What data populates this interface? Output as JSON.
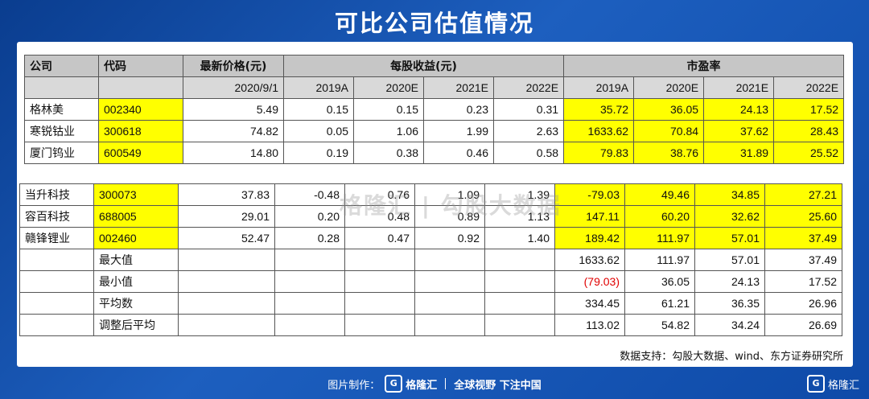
{
  "title": "可比公司估值情况",
  "header": {
    "company": "公司",
    "code": "代码",
    "latest_price": "最新价格(元)",
    "eps": "每股收益(元)",
    "pe": "市盈率",
    "date": "2020/9/1",
    "eps_years": [
      "2019A",
      "2020E",
      "2021E",
      "2022E"
    ],
    "pe_years": [
      "2019A",
      "2020E",
      "2021E",
      "2022E"
    ]
  },
  "group1": [
    {
      "name": "格林美",
      "code": "002340",
      "price": "5.49",
      "eps": [
        "0.15",
        "0.15",
        "0.23",
        "0.31"
      ],
      "pe": [
        "35.72",
        "36.05",
        "24.13",
        "17.52"
      ]
    },
    {
      "name": "寒锐钴业",
      "code": "300618",
      "price": "74.82",
      "eps": [
        "0.05",
        "1.06",
        "1.99",
        "2.63"
      ],
      "pe": [
        "1633.62",
        "70.84",
        "37.62",
        "28.43"
      ]
    },
    {
      "name": "厦门钨业",
      "code": "600549",
      "price": "14.80",
      "eps": [
        "0.19",
        "0.38",
        "0.46",
        "0.58"
      ],
      "pe": [
        "79.83",
        "38.76",
        "31.89",
        "25.52"
      ]
    }
  ],
  "group2": [
    {
      "name": "当升科技",
      "code": "300073",
      "price": "37.83",
      "eps": [
        "-0.48",
        "0.76",
        "1.09",
        "1.39"
      ],
      "pe": [
        "-79.03",
        "49.46",
        "34.85",
        "27.21"
      ]
    },
    {
      "name": "容百科技",
      "code": "688005",
      "price": "29.01",
      "eps": [
        "0.20",
        "0.48",
        "0.89",
        "1.13"
      ],
      "pe": [
        "147.11",
        "60.20",
        "32.62",
        "25.60"
      ]
    },
    {
      "name": "赣锋锂业",
      "code": "002460",
      "price": "52.47",
      "eps": [
        "0.28",
        "0.47",
        "0.92",
        "1.40"
      ],
      "pe": [
        "189.42",
        "111.97",
        "57.01",
        "37.49"
      ]
    }
  ],
  "stats": [
    {
      "label": "最大值",
      "pe": [
        "1633.62",
        "111.97",
        "57.01",
        "37.49"
      ]
    },
    {
      "label": "最小值",
      "pe": [
        "(79.03)",
        "36.05",
        "24.13",
        "17.52"
      ]
    },
    {
      "label": "平均数",
      "pe": [
        "334.45",
        "61.21",
        "36.35",
        "26.96"
      ]
    },
    {
      "label": "调整后平均",
      "pe": [
        "113.02",
        "54.82",
        "34.24",
        "26.69"
      ]
    }
  ],
  "source": "数据支持：勾股大数据、wind、东方证券研究所",
  "watermark": "格隆汇 | 勾股大数据",
  "footer": {
    "made_by": "图片制作：",
    "brand": "格隆汇",
    "slogan": "全球视野 下注中国"
  },
  "corner_brand": "格隆汇",
  "colors": {
    "highlight": "#ffff00",
    "negative": "#e00000",
    "background": "#0e4aa8"
  }
}
